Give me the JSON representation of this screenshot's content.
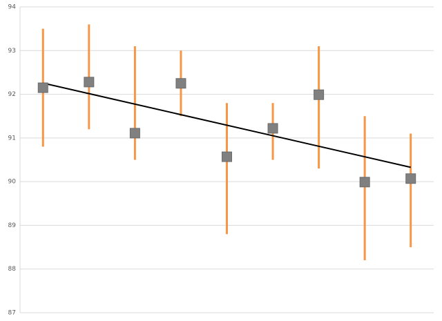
{
  "chart_data": {
    "type": "scatter-errorbar",
    "categories": [
      null,
      null,
      null,
      null,
      null,
      null,
      null,
      null,
      null
    ],
    "series": [
      {
        "color": "#808080",
        "bar_color": "#f79646",
        "values": [
          92.15,
          92.28,
          91.11,
          92.25,
          90.57,
          91.22,
          91.99,
          89.99,
          90.07
        ],
        "high": [
          93.5,
          93.6,
          93.1,
          93.0,
          91.8,
          91.8,
          93.1,
          91.5,
          91.1
        ],
        "low": [
          90.8,
          91.2,
          90.5,
          91.5,
          88.8,
          90.5,
          90.3,
          88.2,
          88.5
        ]
      }
    ],
    "trendline": true,
    "trendline_color": "#000000",
    "ylim": [
      87,
      94
    ],
    "yticks": [
      87,
      88,
      89,
      90,
      91,
      92,
      93,
      94
    ],
    "grid": true
  }
}
